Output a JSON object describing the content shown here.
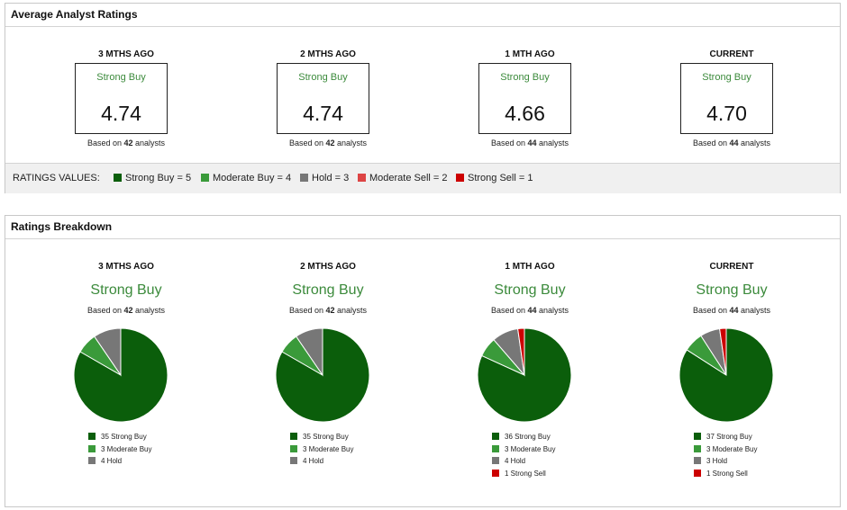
{
  "avg_panel": {
    "title": "Average Analyst Ratings",
    "columns": [
      {
        "period": "3 MTHS AGO",
        "rating": "Strong Buy",
        "score": "4.74",
        "based_prefix": "Based on",
        "analysts": "42",
        "based_suffix": "analysts"
      },
      {
        "period": "2 MTHS AGO",
        "rating": "Strong Buy",
        "score": "4.74",
        "based_prefix": "Based on",
        "analysts": "42",
        "based_suffix": "analysts"
      },
      {
        "period": "1 MTH AGO",
        "rating": "Strong Buy",
        "score": "4.66",
        "based_prefix": "Based on",
        "analysts": "44",
        "based_suffix": "analysts"
      },
      {
        "period": "CURRENT",
        "rating": "Strong Buy",
        "score": "4.70",
        "based_prefix": "Based on",
        "analysts": "44",
        "based_suffix": "analysts"
      }
    ],
    "ratings_values": {
      "label": "RATINGS VALUES:",
      "items": [
        {
          "text": "Strong Buy = 5",
          "color": "#0b5e0b"
        },
        {
          "text": "Moderate Buy = 4",
          "color": "#3a9a3a"
        },
        {
          "text": "Hold = 3",
          "color": "#777777"
        },
        {
          "text": "Moderate Sell = 2",
          "color": "#dd4444"
        },
        {
          "text": "Strong Sell = 1",
          "color": "#cc0000"
        }
      ]
    }
  },
  "breakdown_panel": {
    "title": "Ratings Breakdown",
    "columns": [
      {
        "period": "3 MTHS AGO",
        "rating": "Strong Buy",
        "based_prefix": "Based on",
        "analysts": "42",
        "based_suffix": "analysts"
      },
      {
        "period": "2 MTHS AGO",
        "rating": "Strong Buy",
        "based_prefix": "Based on",
        "analysts": "42",
        "based_suffix": "analysts"
      },
      {
        "period": "1 MTH AGO",
        "rating": "Strong Buy",
        "based_prefix": "Based on",
        "analysts": "44",
        "based_suffix": "analysts"
      },
      {
        "period": "CURRENT",
        "rating": "Strong Buy",
        "based_prefix": "Based on",
        "analysts": "44",
        "based_suffix": "analysts"
      }
    ]
  },
  "chart_data": [
    {
      "type": "pie",
      "title": "3 MTHS AGO",
      "slices": [
        {
          "label": "35 Strong Buy",
          "value": 35,
          "color": "#0b5e0b"
        },
        {
          "label": "3 Moderate Buy",
          "value": 3,
          "color": "#3a9a3a"
        },
        {
          "label": "4 Hold",
          "value": 4,
          "color": "#777777"
        }
      ]
    },
    {
      "type": "pie",
      "title": "2 MTHS AGO",
      "slices": [
        {
          "label": "35 Strong Buy",
          "value": 35,
          "color": "#0b5e0b"
        },
        {
          "label": "3 Moderate Buy",
          "value": 3,
          "color": "#3a9a3a"
        },
        {
          "label": "4 Hold",
          "value": 4,
          "color": "#777777"
        }
      ]
    },
    {
      "type": "pie",
      "title": "1 MTH AGO",
      "slices": [
        {
          "label": "36 Strong Buy",
          "value": 36,
          "color": "#0b5e0b"
        },
        {
          "label": "3 Moderate Buy",
          "value": 3,
          "color": "#3a9a3a"
        },
        {
          "label": "4 Hold",
          "value": 4,
          "color": "#777777"
        },
        {
          "label": "1 Strong Sell",
          "value": 1,
          "color": "#cc0000"
        }
      ]
    },
    {
      "type": "pie",
      "title": "CURRENT",
      "slices": [
        {
          "label": "37 Strong Buy",
          "value": 37,
          "color": "#0b5e0b"
        },
        {
          "label": "3 Moderate Buy",
          "value": 3,
          "color": "#3a9a3a"
        },
        {
          "label": "3 Hold",
          "value": 3,
          "color": "#777777"
        },
        {
          "label": "1 Strong Sell",
          "value": 1,
          "color": "#cc0000"
        }
      ]
    }
  ]
}
